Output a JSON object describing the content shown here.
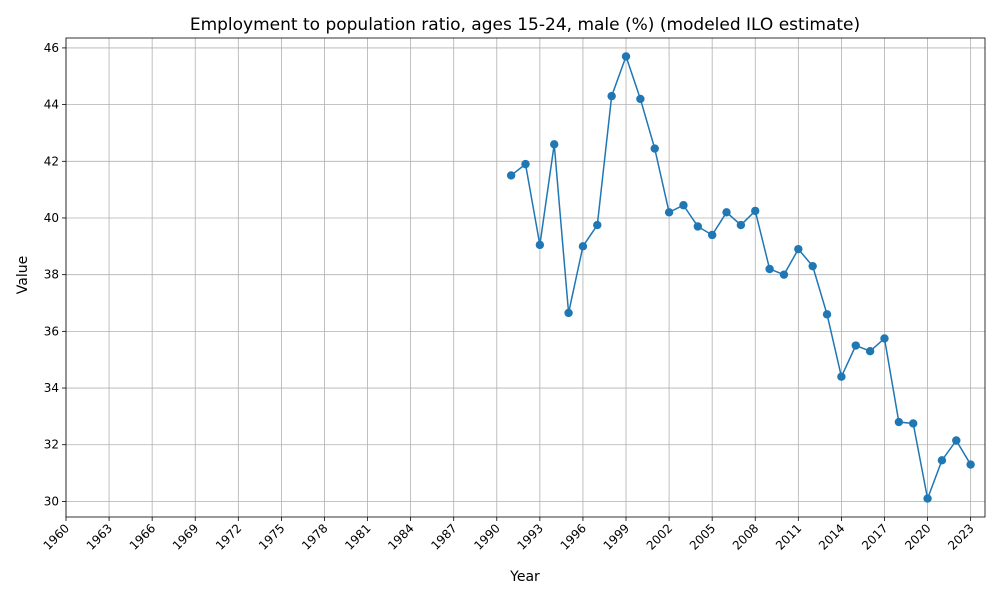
{
  "chart_data": {
    "type": "line",
    "title": "Employment to population ratio, ages 15-24, male (%) (modeled ILO estimate)",
    "xlabel": "Year",
    "ylabel": "Value",
    "xlim": [
      1960,
      2024
    ],
    "ylim": [
      29.45,
      46.35
    ],
    "xticks": [
      1960,
      1963,
      1966,
      1969,
      1972,
      1975,
      1978,
      1981,
      1984,
      1987,
      1990,
      1993,
      1996,
      1999,
      2002,
      2005,
      2008,
      2011,
      2014,
      2017,
      2020,
      2023
    ],
    "yticks": [
      30,
      32,
      34,
      36,
      38,
      40,
      42,
      44,
      46
    ],
    "grid": true,
    "color": "#1f77b4",
    "x": [
      1991,
      1992,
      1993,
      1994,
      1995,
      1996,
      1997,
      1998,
      1999,
      2000,
      2001,
      2002,
      2003,
      2004,
      2005,
      2006,
      2007,
      2008,
      2009,
      2010,
      2011,
      2012,
      2013,
      2014,
      2015,
      2016,
      2017,
      2018,
      2019,
      2020,
      2021,
      2022,
      2023
    ],
    "values": [
      41.5,
      41.9,
      39.05,
      42.6,
      36.65,
      39.0,
      39.75,
      44.3,
      45.7,
      44.2,
      42.45,
      40.2,
      40.45,
      39.7,
      39.4,
      40.2,
      39.75,
      40.25,
      38.2,
      38.0,
      38.9,
      38.3,
      36.6,
      34.4,
      35.5,
      35.3,
      35.75,
      32.8,
      32.75,
      30.1,
      31.45,
      32.15,
      31.3
    ]
  }
}
